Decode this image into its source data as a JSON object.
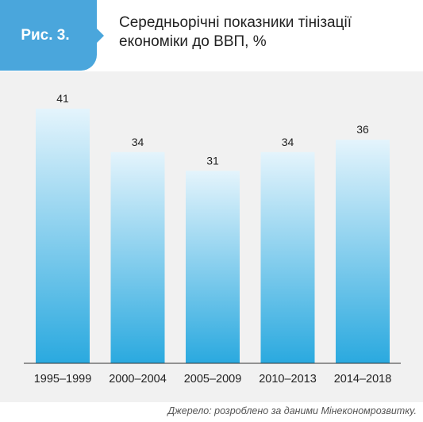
{
  "figure": {
    "label": "Рис. 3.",
    "title_line1": "Середньорічні показники тінізації",
    "title_line2": "економіки до ВВП, %"
  },
  "source": "Джерело: розроблено за даними Мінекономрозвитку.",
  "colors": {
    "badge": "#4aa6dc",
    "bar_top": "#e4f4fc",
    "bar_bottom": "#2aa9df",
    "panel": "#f1f1f1"
  },
  "chart_data": {
    "type": "bar",
    "title": "Середньорічні показники тінізації економіки до ВВП, %",
    "categories": [
      "1995–1999",
      "2000–2004",
      "2005–2009",
      "2010–2013",
      "2014–2018"
    ],
    "values": [
      41,
      34,
      31,
      34,
      36
    ],
    "xlabel": "",
    "ylabel": "",
    "ylim": [
      0,
      47
    ],
    "grid": false,
    "legend": "none",
    "data_labels": true
  }
}
